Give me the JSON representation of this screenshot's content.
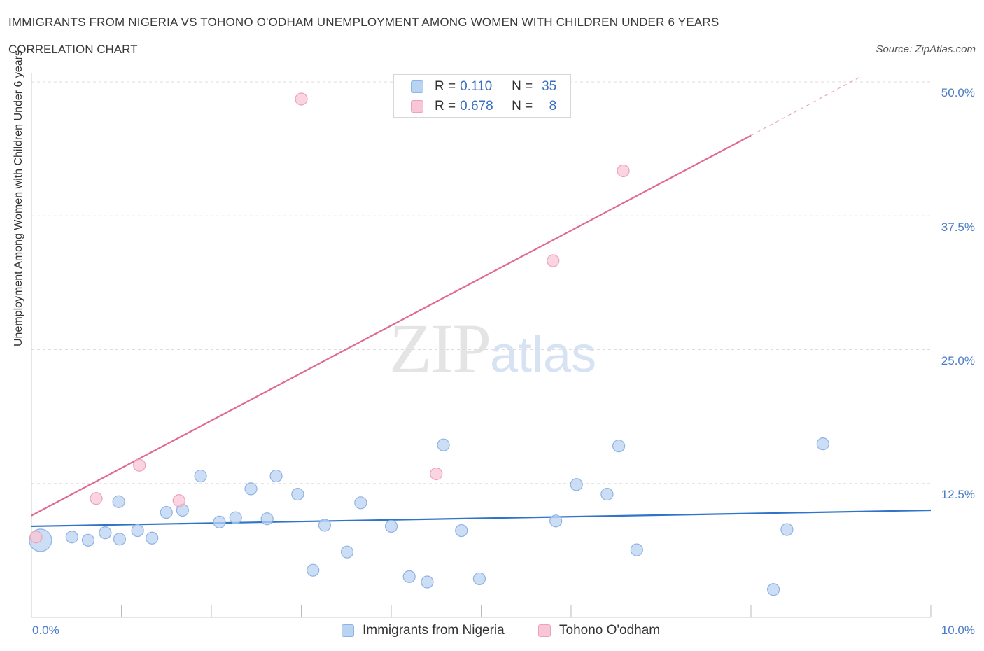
{
  "header": {
    "title": "IMMIGRANTS FROM NIGERIA VS TOHONO O'ODHAM UNEMPLOYMENT AMONG WOMEN WITH CHILDREN UNDER 6 YEARS",
    "subtitle": "CORRELATION CHART",
    "source": "Source: ZipAtlas.com"
  },
  "watermark": {
    "zip": "ZIP",
    "atlas": "atlas"
  },
  "legend": {
    "rows": [
      {
        "r_label": "R =",
        "r_value": "0.110",
        "n_label": "N =",
        "n_value": "35"
      },
      {
        "r_label": "R =",
        "r_value": "0.678",
        "n_label": "N =",
        "n_value": "8"
      }
    ]
  },
  "colors": {
    "blue_fill": "#b9d3f3",
    "blue_stroke": "#8fb3e3",
    "blue_line": "#2f74c8",
    "pink_fill": "#f8c6d5",
    "pink_stroke": "#eea2b9",
    "pink_line": "#e06a93",
    "grid": "#dddddd",
    "tick_text": "#4a7cc8"
  },
  "chart_data": {
    "type": "scatter",
    "title": "IMMIGRANTS FROM NIGERIA VS TOHONO O'ODHAM UNEMPLOYMENT AMONG WOMEN WITH CHILDREN UNDER 6 YEARS",
    "xlabel": "",
    "ylabel": "Unemployment Among Women with Children Under 6 years",
    "xlim": [
      0,
      10
    ],
    "ylim": [
      0,
      50
    ],
    "x_tick_labels": [
      "0.0%",
      "10.0%"
    ],
    "y_ticks": [
      12.5,
      25.0,
      37.5,
      50.0
    ],
    "y_tick_labels": [
      "12.5%",
      "25.0%",
      "37.5%",
      "50.0%"
    ],
    "grid": true,
    "legend_position": "top-center",
    "series": [
      {
        "name": "Immigrants from Nigeria",
        "color": "blue",
        "points": [
          {
            "x": 0.1,
            "y": 7.2,
            "big": true
          },
          {
            "x": 0.45,
            "y": 7.5
          },
          {
            "x": 0.63,
            "y": 7.2
          },
          {
            "x": 0.82,
            "y": 7.9
          },
          {
            "x": 0.98,
            "y": 7.3
          },
          {
            "x": 0.97,
            "y": 10.8
          },
          {
            "x": 1.18,
            "y": 8.1
          },
          {
            "x": 1.34,
            "y": 7.4
          },
          {
            "x": 1.5,
            "y": 9.8
          },
          {
            "x": 1.68,
            "y": 10.0
          },
          {
            "x": 1.88,
            "y": 13.2
          },
          {
            "x": 2.09,
            "y": 8.9
          },
          {
            "x": 2.27,
            "y": 9.3
          },
          {
            "x": 2.44,
            "y": 12.0
          },
          {
            "x": 2.62,
            "y": 9.2
          },
          {
            "x": 2.72,
            "y": 13.2
          },
          {
            "x": 2.96,
            "y": 11.5
          },
          {
            "x": 3.13,
            "y": 4.4
          },
          {
            "x": 3.26,
            "y": 8.6
          },
          {
            "x": 3.51,
            "y": 6.1
          },
          {
            "x": 3.66,
            "y": 10.7
          },
          {
            "x": 4.0,
            "y": 8.5
          },
          {
            "x": 4.2,
            "y": 3.8
          },
          {
            "x": 4.4,
            "y": 3.3
          },
          {
            "x": 4.58,
            "y": 16.1
          },
          {
            "x": 4.78,
            "y": 8.1
          },
          {
            "x": 4.98,
            "y": 3.6
          },
          {
            "x": 5.83,
            "y": 9.0
          },
          {
            "x": 6.06,
            "y": 12.4
          },
          {
            "x": 6.4,
            "y": 11.5
          },
          {
            "x": 6.53,
            "y": 16.0
          },
          {
            "x": 6.73,
            "y": 6.3
          },
          {
            "x": 8.25,
            "y": 2.6
          },
          {
            "x": 8.4,
            "y": 8.2
          },
          {
            "x": 8.8,
            "y": 16.2
          }
        ],
        "trend": {
          "x0": 0.0,
          "y0": 8.5,
          "x1": 10.0,
          "y1": 10.0
        }
      },
      {
        "name": "Tohono O'odham",
        "color": "pink",
        "points": [
          {
            "x": 0.05,
            "y": 7.5
          },
          {
            "x": 0.72,
            "y": 11.1
          },
          {
            "x": 1.2,
            "y": 14.2
          },
          {
            "x": 1.64,
            "y": 10.9
          },
          {
            "x": 3.0,
            "y": 48.4
          },
          {
            "x": 4.5,
            "y": 13.4
          },
          {
            "x": 5.8,
            "y": 33.3
          },
          {
            "x": 6.58,
            "y": 41.7
          }
        ],
        "trend": {
          "x0": 0.0,
          "y0": 9.5,
          "x1": 8.0,
          "y1": 45.0,
          "dashed_to_x": 9.2,
          "dashed_to_y": 50.4
        }
      }
    ]
  },
  "bottom_legend": {
    "items": [
      {
        "label": "Immigrants from Nigeria"
      },
      {
        "label": "Tohono O'odham"
      }
    ]
  }
}
